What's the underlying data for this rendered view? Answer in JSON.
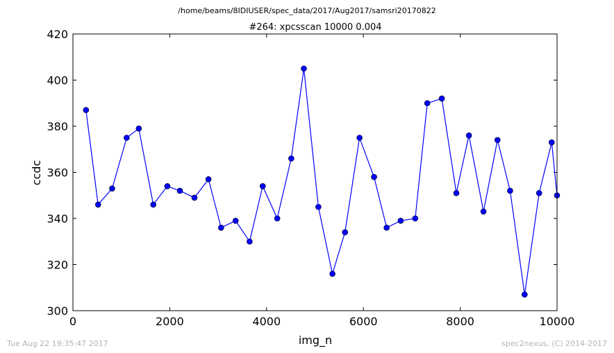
{
  "header": {
    "path": "/home/beams/8IDIUSER/spec_data/2017/Aug2017/samsri20170822"
  },
  "footer": {
    "timestamp": "Tue Aug 22 19:35:47 2017",
    "credit": "spec2nexus, (C) 2014-2017"
  },
  "chart_data": {
    "type": "line",
    "title": "#264: xpcsscan 10000 0.004",
    "xlabel": "img_n",
    "ylabel": "ccdc",
    "xlim": [
      0,
      10000
    ],
    "ylim": [
      300,
      420
    ],
    "xticks": [
      0,
      2000,
      4000,
      6000,
      8000,
      10000
    ],
    "yticks": [
      300,
      320,
      340,
      360,
      380,
      400,
      420
    ],
    "grid": false,
    "color": "#0000ff",
    "marker": "circle",
    "x": [
      270,
      520,
      810,
      1110,
      1360,
      1660,
      1950,
      2210,
      2510,
      2800,
      3060,
      3360,
      3650,
      3920,
      4220,
      4510,
      4770,
      5070,
      5360,
      5620,
      5920,
      6220,
      6480,
      6770,
      7070,
      7320,
      7620,
      7920,
      8180,
      8480,
      8770,
      9030,
      9330,
      9630,
      9890,
      10000
    ],
    "y": [
      387,
      346,
      353,
      375,
      379,
      346,
      354,
      352,
      349,
      357,
      336,
      339,
      330,
      354,
      340,
      366,
      405,
      345,
      316,
      334,
      375,
      358,
      336,
      339,
      340,
      390,
      392,
      351,
      376,
      343,
      374,
      352,
      307,
      351,
      373,
      350
    ]
  }
}
